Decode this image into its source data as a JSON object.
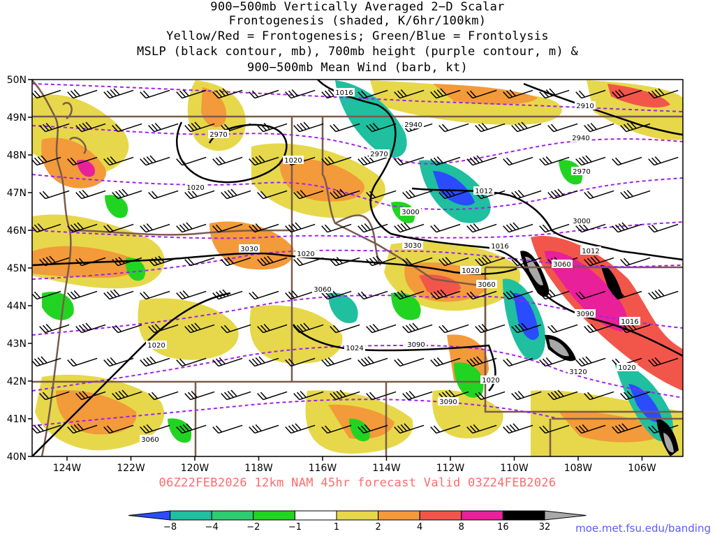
{
  "title": {
    "lines": [
      "900−500mb Vertically Averaged 2−D Scalar",
      "Frontogenesis (shaded, K/6hr/100km)",
      "Yellow/Red = Frontogenesis;  Green/Blue = Frontolysis",
      "MSLP (black contour, mb), 700mb height (purple contour, m) &",
      "900−500mb Mean Wind (barb, kt)"
    ]
  },
  "footer": "06Z22FEB2026 12km NAM 45hr forecast Valid 03Z24FEB2026",
  "credit": "moe.met.fsu.edu/banding",
  "axes": {
    "lat_labels": [
      "50N",
      "49N",
      "48N",
      "47N",
      "46N",
      "45N",
      "44N",
      "43N",
      "42N",
      "41N",
      "40N"
    ],
    "lon_labels": [
      "124W",
      "122W",
      "120W",
      "118W",
      "116W",
      "114W",
      "112W",
      "110W",
      "108W",
      "106W"
    ]
  },
  "colors": {
    "blue": "#2a4cff",
    "teal": "#1fbfa0",
    "mid_green": "#2ecc71",
    "bright_green": "#22d422",
    "white": "#ffffff",
    "yellow": "#e6d84a",
    "orange": "#f39a3a",
    "red": "#f2564a",
    "magenta": "#e8209a",
    "black": "#000000",
    "gray": "#a8a8a8",
    "mslp": "#000000",
    "height": "#a020f0",
    "borders": "#7a5b4a"
  },
  "legend": {
    "labels": [
      "−8",
      "−4",
      "−2",
      "−1",
      "1",
      "2",
      "4",
      "8",
      "16",
      "32"
    ]
  },
  "mslp_labels": [
    "1016",
    "1020",
    "1020",
    "1012",
    "1016",
    "1020",
    "1012",
    "1020",
    "1016",
    "1020",
    "1024",
    "1020",
    "1020"
  ],
  "height_labels": [
    "2970",
    "2940",
    "2910",
    "2940",
    "2970",
    "2970",
    "3000",
    "3000",
    "3030",
    "3030",
    "3060",
    "3060",
    "3060",
    "3090",
    "3090",
    "3120",
    "3090",
    "3060"
  ]
}
